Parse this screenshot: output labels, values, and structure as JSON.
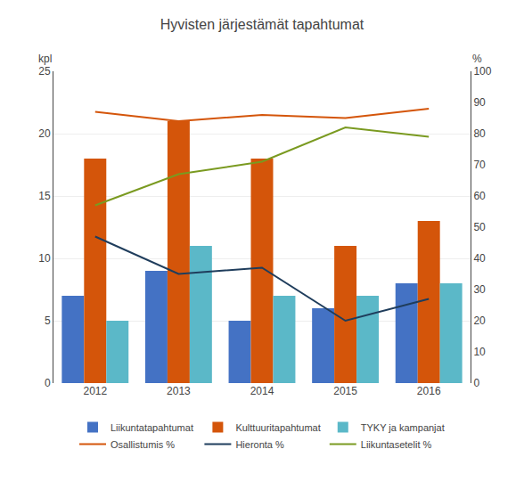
{
  "chart_data": {
    "type": "bar",
    "title": "Hyvisten järjestämät tapahtumat",
    "ylabel": "kpl",
    "y2label": "%",
    "categories": [
      "2012",
      "2013",
      "2014",
      "2015",
      "2016"
    ],
    "series": [
      {
        "name": "Liikuntatapahtumat",
        "type": "bar",
        "color": "#4472C4",
        "values": [
          7,
          9,
          5,
          6,
          8
        ]
      },
      {
        "name": "Kulttuuritapahtumat",
        "type": "bar",
        "color": "#D4550A",
        "values": [
          18,
          21,
          18,
          11,
          13
        ]
      },
      {
        "name": "TYKY ja kampanjat",
        "type": "bar",
        "color": "#5BB8C8",
        "values": [
          5,
          11,
          7,
          7,
          8
        ]
      },
      {
        "name": "Osallistumis %",
        "type": "line",
        "axis": "y2",
        "color": "#D4550A",
        "values": [
          87,
          84,
          86,
          85,
          88
        ]
      },
      {
        "name": "Hieronta %",
        "type": "line",
        "axis": "y2",
        "color": "#1F3D5C",
        "values": [
          47,
          35,
          37,
          20,
          27
        ]
      },
      {
        "name": "Liikuntasetelit %",
        "type": "line",
        "axis": "y2",
        "color": "#7A9A20",
        "values": [
          57,
          67,
          71,
          82,
          79
        ]
      }
    ],
    "ylim": [
      0,
      25
    ],
    "yticks": [
      0,
      5,
      10,
      15,
      20,
      25
    ],
    "y2lim": [
      0,
      100
    ],
    "y2ticks": [
      0,
      10,
      20,
      30,
      40,
      50,
      60,
      70,
      80,
      90,
      100
    ],
    "grid": true,
    "legend": "bottom"
  }
}
